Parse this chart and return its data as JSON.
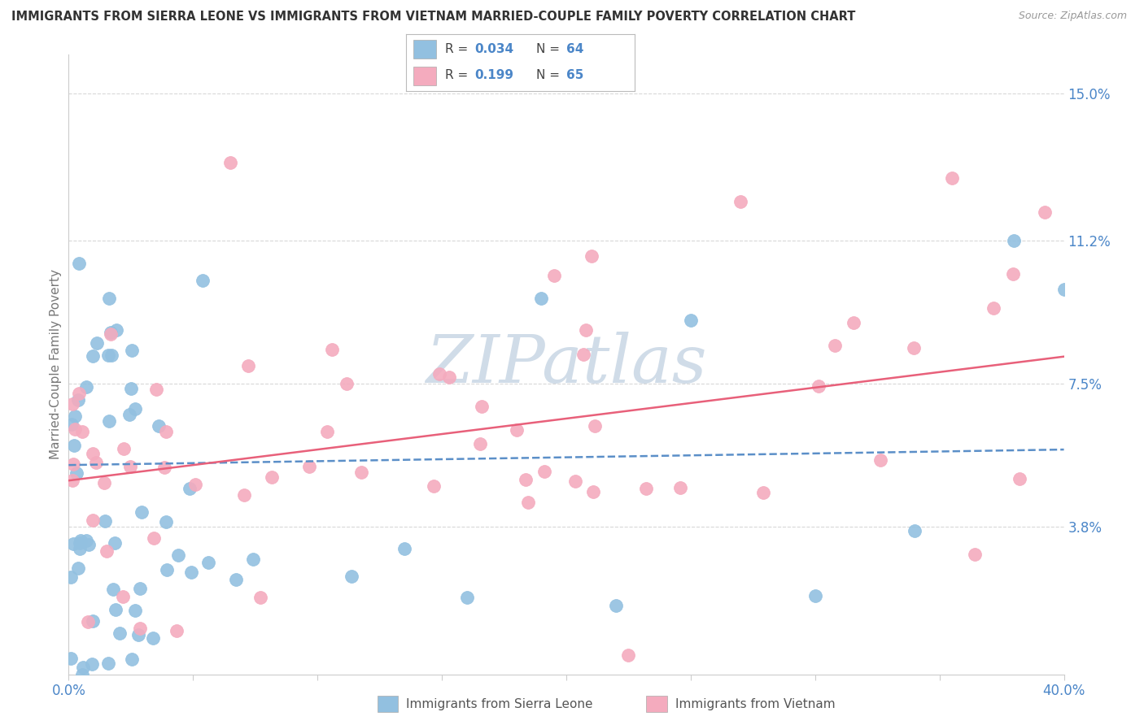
{
  "title": "IMMIGRANTS FROM SIERRA LEONE VS IMMIGRANTS FROM VIETNAM MARRIED-COUPLE FAMILY POVERTY CORRELATION CHART",
  "source": "Source: ZipAtlas.com",
  "ylabel": "Married-Couple Family Poverty",
  "xlim": [
    0.0,
    0.4
  ],
  "ylim": [
    0.0,
    0.16
  ],
  "ytick_positions": [
    0.038,
    0.075,
    0.112,
    0.15
  ],
  "yticklabels": [
    "3.8%",
    "7.5%",
    "11.2%",
    "15.0%"
  ],
  "legend_label1": "Immigrants from Sierra Leone",
  "legend_label2": "Immigrants from Vietnam",
  "color_sierra": "#92C0E0",
  "color_vietnam": "#F4ABBE",
  "color_text_blue": "#4B86C8",
  "color_trend_sierra": "#5B8FC8",
  "color_trend_vietnam": "#E8607A",
  "background_color": "#FFFFFF",
  "grid_color": "#D8D8D8",
  "watermark_color": "#D0DCE8",
  "R_sierra": 0.034,
  "N_sierra": 64,
  "R_vietnam": 0.199,
  "N_vietnam": 65,
  "trend_sierra_start_y": 0.054,
  "trend_sierra_end_y": 0.058,
  "trend_vietnam_start_y": 0.05,
  "trend_vietnam_end_y": 0.082
}
